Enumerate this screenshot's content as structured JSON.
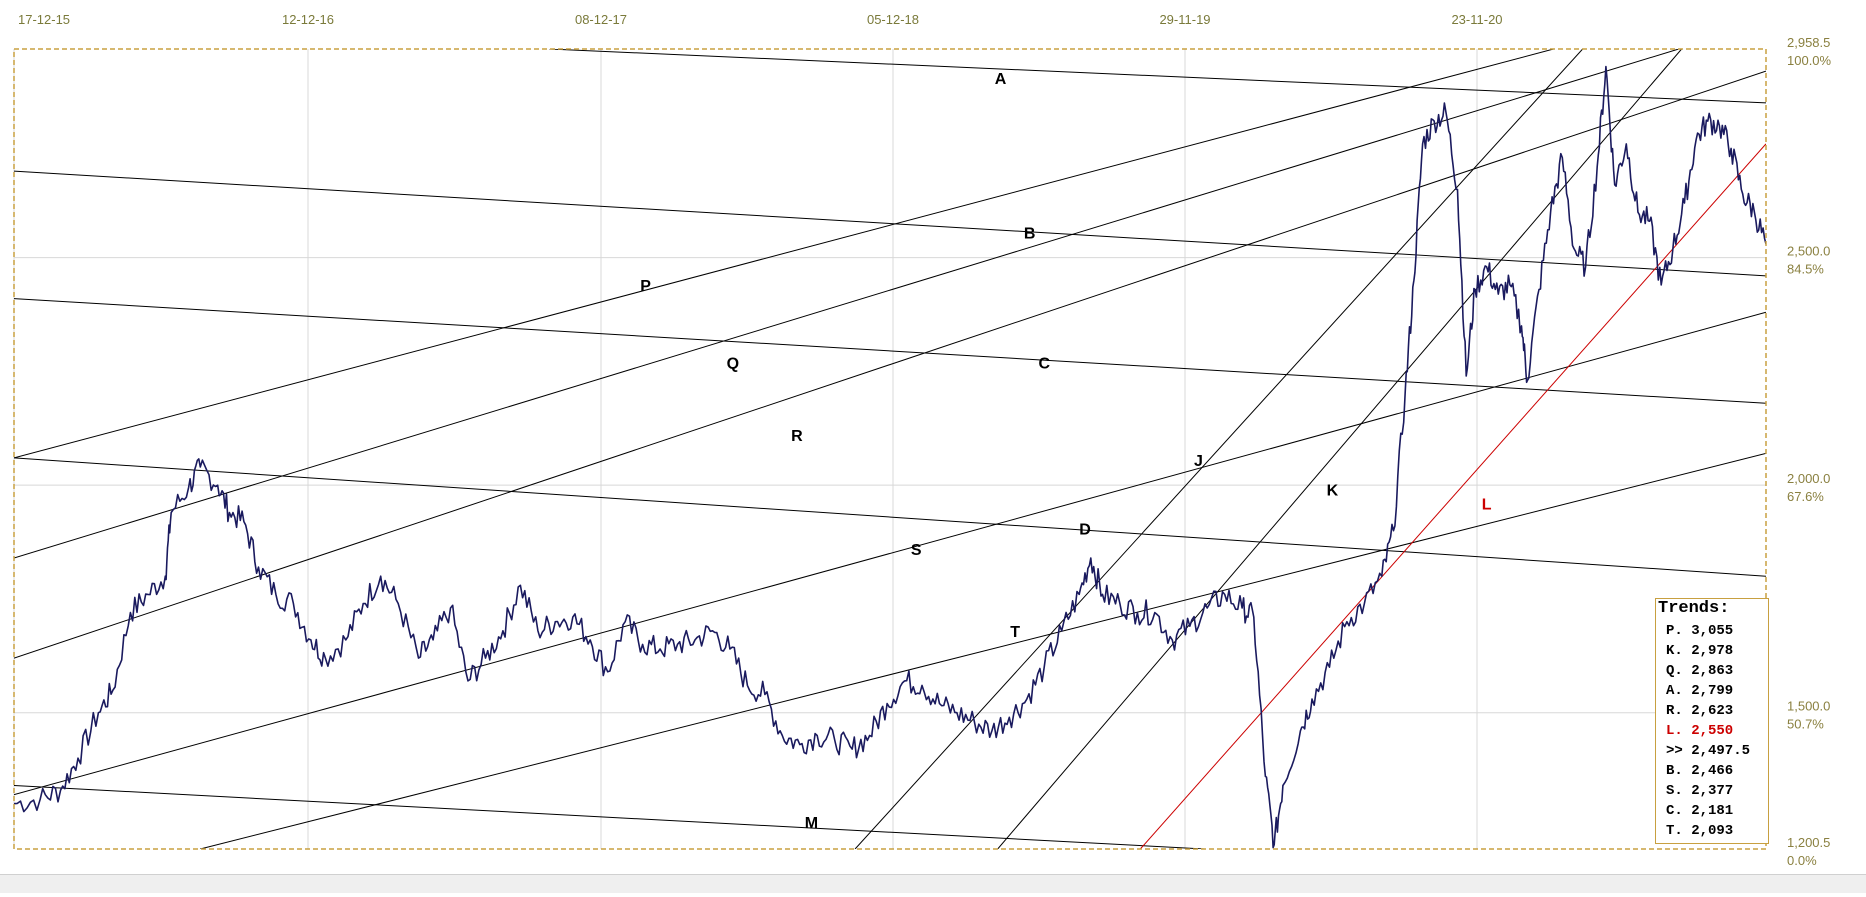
{
  "chart_data": {
    "type": "line",
    "x_ticks": [
      "17-12-15",
      "12-12-16",
      "08-12-17",
      "05-12-18",
      "29-11-19",
      "23-11-20"
    ],
    "y_ticks": [
      {
        "value": "2,958.5",
        "pct": "100.0%"
      },
      {
        "value": "2,500.0",
        "pct": "84.5%"
      },
      {
        "value": "2,000.0",
        "pct": "67.6%"
      },
      {
        "value": "1,500.0",
        "pct": "50.7%"
      },
      {
        "value": "1,200.5",
        "pct": "0.0%"
      }
    ],
    "ylim": [
      1200.5,
      2958.5
    ],
    "xlim": [
      2015.96,
      2021.98
    ],
    "grid": "on",
    "series_color": "#1a1a5e",
    "trendline_color": "#000000",
    "highlight_color": "#cc0000",
    "series": [
      {
        "points": [
          [
            2015.96,
            1300
          ],
          [
            2016.05,
            1310
          ],
          [
            2016.12,
            1330
          ],
          [
            2016.18,
            1400
          ],
          [
            2016.25,
            1500
          ],
          [
            2016.3,
            1550
          ],
          [
            2016.36,
            1720
          ],
          [
            2016.42,
            1760
          ],
          [
            2016.48,
            1800
          ],
          [
            2016.5,
            1940
          ],
          [
            2016.56,
            1995
          ],
          [
            2016.6,
            2040
          ],
          [
            2016.66,
            2000
          ],
          [
            2016.7,
            1940
          ],
          [
            2016.75,
            1920
          ],
          [
            2016.8,
            1820
          ],
          [
            2016.86,
            1760
          ],
          [
            2016.92,
            1740
          ],
          [
            2016.98,
            1660
          ],
          [
            2017.03,
            1620
          ],
          [
            2017.1,
            1660
          ],
          [
            2017.16,
            1740
          ],
          [
            2017.22,
            1800
          ],
          [
            2017.28,
            1740
          ],
          [
            2017.35,
            1620
          ],
          [
            2017.4,
            1660
          ],
          [
            2017.46,
            1730
          ],
          [
            2017.52,
            1570
          ],
          [
            2017.58,
            1620
          ],
          [
            2017.64,
            1680
          ],
          [
            2017.7,
            1780
          ],
          [
            2017.76,
            1680
          ],
          [
            2017.82,
            1700
          ],
          [
            2017.88,
            1710
          ],
          [
            2017.94,
            1660
          ],
          [
            2018.0,
            1590
          ],
          [
            2018.06,
            1700
          ],
          [
            2018.12,
            1650
          ],
          [
            2018.18,
            1640
          ],
          [
            2018.24,
            1650
          ],
          [
            2018.3,
            1660
          ],
          [
            2018.36,
            1680
          ],
          [
            2018.42,
            1640
          ],
          [
            2018.48,
            1560
          ],
          [
            2018.54,
            1540
          ],
          [
            2018.6,
            1450
          ],
          [
            2018.66,
            1430
          ],
          [
            2018.72,
            1450
          ],
          [
            2018.78,
            1440
          ],
          [
            2018.84,
            1420
          ],
          [
            2018.9,
            1450
          ],
          [
            2018.96,
            1520
          ],
          [
            2019.02,
            1570
          ],
          [
            2019.08,
            1560
          ],
          [
            2019.14,
            1520
          ],
          [
            2019.2,
            1500
          ],
          [
            2019.26,
            1480
          ],
          [
            2019.32,
            1460
          ],
          [
            2019.38,
            1490
          ],
          [
            2019.44,
            1530
          ],
          [
            2019.5,
            1600
          ],
          [
            2019.56,
            1680
          ],
          [
            2019.62,
            1760
          ],
          [
            2019.66,
            1840
          ],
          [
            2019.7,
            1760
          ],
          [
            2019.76,
            1740
          ],
          [
            2019.82,
            1720
          ],
          [
            2019.88,
            1720
          ],
          [
            2019.94,
            1660
          ],
          [
            2020.0,
            1690
          ],
          [
            2020.06,
            1730
          ],
          [
            2020.12,
            1760
          ],
          [
            2020.18,
            1730
          ],
          [
            2020.22,
            1710
          ],
          [
            2020.26,
            1360
          ],
          [
            2020.29,
            1210
          ],
          [
            2020.32,
            1340
          ],
          [
            2020.38,
            1460
          ],
          [
            2020.42,
            1530
          ],
          [
            2020.48,
            1600
          ],
          [
            2020.54,
            1700
          ],
          [
            2020.6,
            1740
          ],
          [
            2020.66,
            1800
          ],
          [
            2020.7,
            1900
          ],
          [
            2020.74,
            2200
          ],
          [
            2020.77,
            2450
          ],
          [
            2020.8,
            2750
          ],
          [
            2020.84,
            2800
          ],
          [
            2020.88,
            2820
          ],
          [
            2020.92,
            2650
          ],
          [
            2020.95,
            2240
          ],
          [
            2020.98,
            2430
          ],
          [
            2021.02,
            2480
          ],
          [
            2021.06,
            2420
          ],
          [
            2021.1,
            2440
          ],
          [
            2021.14,
            2350
          ],
          [
            2021.16,
            2230
          ],
          [
            2021.2,
            2430
          ],
          [
            2021.24,
            2600
          ],
          [
            2021.28,
            2720
          ],
          [
            2021.32,
            2520
          ],
          [
            2021.36,
            2480
          ],
          [
            2021.4,
            2700
          ],
          [
            2021.43,
            2920
          ],
          [
            2021.46,
            2660
          ],
          [
            2021.5,
            2750
          ],
          [
            2021.54,
            2600
          ],
          [
            2021.58,
            2580
          ],
          [
            2021.62,
            2440
          ],
          [
            2021.66,
            2520
          ],
          [
            2021.7,
            2620
          ],
          [
            2021.74,
            2760
          ],
          [
            2021.78,
            2800
          ],
          [
            2021.82,
            2790
          ],
          [
            2021.86,
            2740
          ],
          [
            2021.9,
            2640
          ],
          [
            2021.94,
            2600
          ],
          [
            2021.98,
            2530
          ]
        ]
      }
    ],
    "trendlines": [
      {
        "label": "A",
        "p1": [
          2017.8,
          2958.5
        ],
        "p2": [
          2021.98,
          2840
        ],
        "label_at": [
          2019.35,
          2895
        ]
      },
      {
        "label": "B",
        "p1": [
          2015.96,
          2690
        ],
        "p2": [
          2021.98,
          2460
        ],
        "label_at": [
          2019.45,
          2555
        ]
      },
      {
        "label": "C",
        "p1": [
          2015.96,
          2410
        ],
        "p2": [
          2021.98,
          2180
        ],
        "label_at": [
          2019.5,
          2270
        ]
      },
      {
        "label": "D",
        "p1": [
          2015.96,
          2060
        ],
        "p2": [
          2021.98,
          1800
        ],
        "label_at": [
          2019.64,
          1905
        ]
      },
      {
        "label": "M",
        "p1": [
          2015.96,
          1340
        ],
        "p2": [
          2020.05,
          1200.5
        ],
        "label_at": [
          2018.7,
          1260
        ]
      },
      {
        "label": "P",
        "p1": [
          2015.96,
          2060
        ],
        "p2": [
          2021.25,
          2958.5
        ],
        "label_at": [
          2018.13,
          2440
        ]
      },
      {
        "label": "Q",
        "p1": [
          2015.96,
          1840
        ],
        "p2": [
          2021.68,
          2958.5
        ],
        "label_at": [
          2018.43,
          2270
        ]
      },
      {
        "label": "R",
        "p1": [
          2015.96,
          1620
        ],
        "p2": [
          2021.98,
          2910
        ],
        "label_at": [
          2018.65,
          2110
        ]
      },
      {
        "label": "S",
        "p1": [
          2015.96,
          1320
        ],
        "p2": [
          2021.98,
          2380
        ],
        "label_at": [
          2019.06,
          1860
        ]
      },
      {
        "label": "T",
        "p1": [
          2016.6,
          1200.5
        ],
        "p2": [
          2021.98,
          2070
        ],
        "label_at": [
          2019.4,
          1680
        ]
      },
      {
        "label": "J",
        "p1": [
          2018.85,
          1200.5
        ],
        "p2": [
          2021.35,
          2958.5
        ],
        "label_at": [
          2020.03,
          2055
        ]
      },
      {
        "label": "K",
        "p1": [
          2019.34,
          1200.5
        ],
        "p2": [
          2021.69,
          2958.5
        ],
        "label_at": [
          2020.49,
          1990
        ]
      },
      {
        "label": "L",
        "p1": [
          2019.83,
          1200.5
        ],
        "p2": [
          2021.98,
          2750
        ],
        "label_at": [
          2021.02,
          1960
        ],
        "color": "#cc0000"
      }
    ],
    "legend_title": "Trends:",
    "legend": [
      {
        "label": "P. 3,055",
        "color": "#000000"
      },
      {
        "label": "K. 2,978",
        "color": "#000000"
      },
      {
        "label": "Q. 2,863",
        "color": "#000000"
      },
      {
        "label": "A. 2,799",
        "color": "#000000"
      },
      {
        "label": "R. 2,623",
        "color": "#000000"
      },
      {
        "label": "L. 2,550",
        "color": "#cc0000"
      },
      {
        "label": ">> 2,497.5",
        "color": "#000000"
      },
      {
        "label": "B. 2,466",
        "color": "#000000"
      },
      {
        "label": "S. 2,377",
        "color": "#000000"
      },
      {
        "label": "C. 2,181",
        "color": "#000000"
      },
      {
        "label": "T. 2,093",
        "color": "#000000"
      }
    ],
    "legend_position": "bottom-right"
  }
}
